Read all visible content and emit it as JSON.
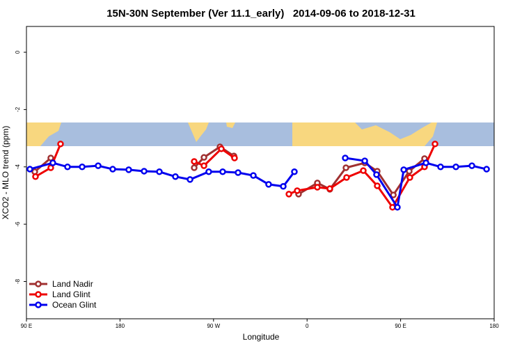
{
  "chart_data": {
    "type": "line",
    "title": "15N-30N September (Ver 11.1_early)   2014-09-06 to 2018-12-31",
    "x_label": "Longitude",
    "y_label": "XCO2 - MLO trend (ppm)",
    "xlim": [
      90,
      540
    ],
    "ylim": [
      -9.3,
      0.9
    ],
    "xticks": [
      {
        "value": 90,
        "label": "90 E"
      },
      180,
      {
        "value": 270,
        "label": "90 W"
      },
      {
        "value": 360,
        "label": "0"
      },
      {
        "value": 450,
        "label": "90 E"
      },
      {
        "value": 540,
        "label": "180"
      }
    ],
    "yticks": [
      0,
      -2,
      -4,
      -6,
      -8
    ],
    "legend": "bottom-left",
    "series": [
      {
        "name": "Land Nadir",
        "color": "#a03030",
        "x": [
          98.0,
          113.4,
          null,
          251.4,
          260.8,
          276.2,
          289.6,
          null,
          351.8,
          369.9,
          381.9,
          397.4,
          415.5,
          427.5,
          443.0,
          458.3,
          473.0
        ],
        "values": [
          -4.17,
          -3.69,
          null,
          -4.03,
          -3.67,
          -3.3,
          -3.62,
          null,
          -4.95,
          -4.56,
          -4.78,
          -4.03,
          -3.86,
          -4.15,
          -4.98,
          -4.15,
          -3.71
        ]
      },
      {
        "name": "Land Glint",
        "color": "#ee0000",
        "x": [
          98.7,
          113.4,
          122.8,
          null,
          251.4,
          260.8,
          277.5,
          290.2,
          null,
          342.5,
          350.5,
          369.9,
          381.9,
          398.0,
          414.1,
          427.5,
          442.2,
          458.9,
          473.0,
          483.1
        ],
        "values": [
          -4.34,
          -4.03,
          -3.2,
          null,
          -3.81,
          -3.96,
          -3.37,
          -3.69,
          null,
          -4.95,
          -4.83,
          -4.71,
          -4.76,
          -4.37,
          -4.13,
          -4.66,
          -5.41,
          -4.37,
          -4.0,
          -3.2
        ]
      },
      {
        "name": "Ocean Glint",
        "color": "#0000ee",
        "x": [
          93.3,
          115.4,
          129.5,
          143.6,
          159.0,
          173.0,
          188.4,
          203.2,
          217.9,
          233.3,
          247.4,
          265.4,
          278.8,
          293.6,
          308.3,
          323.0,
          337.1,
          347.8,
          null,
          396.7,
          415.5,
          426.8,
          446.9,
          453.0,
          474.4,
          488.4,
          503.2,
          518.6,
          532.7
        ],
        "values": [
          -4.08,
          -3.86,
          -4.0,
          -4.0,
          -3.96,
          -4.08,
          -4.1,
          -4.15,
          -4.17,
          -4.34,
          -4.44,
          -4.17,
          -4.17,
          -4.2,
          -4.3,
          -4.61,
          -4.68,
          -4.17,
          null,
          -3.69,
          -3.79,
          -4.27,
          -5.41,
          -4.1,
          -3.86,
          -4.0,
          -4.0,
          -3.96,
          -4.08
        ]
      }
    ]
  }
}
